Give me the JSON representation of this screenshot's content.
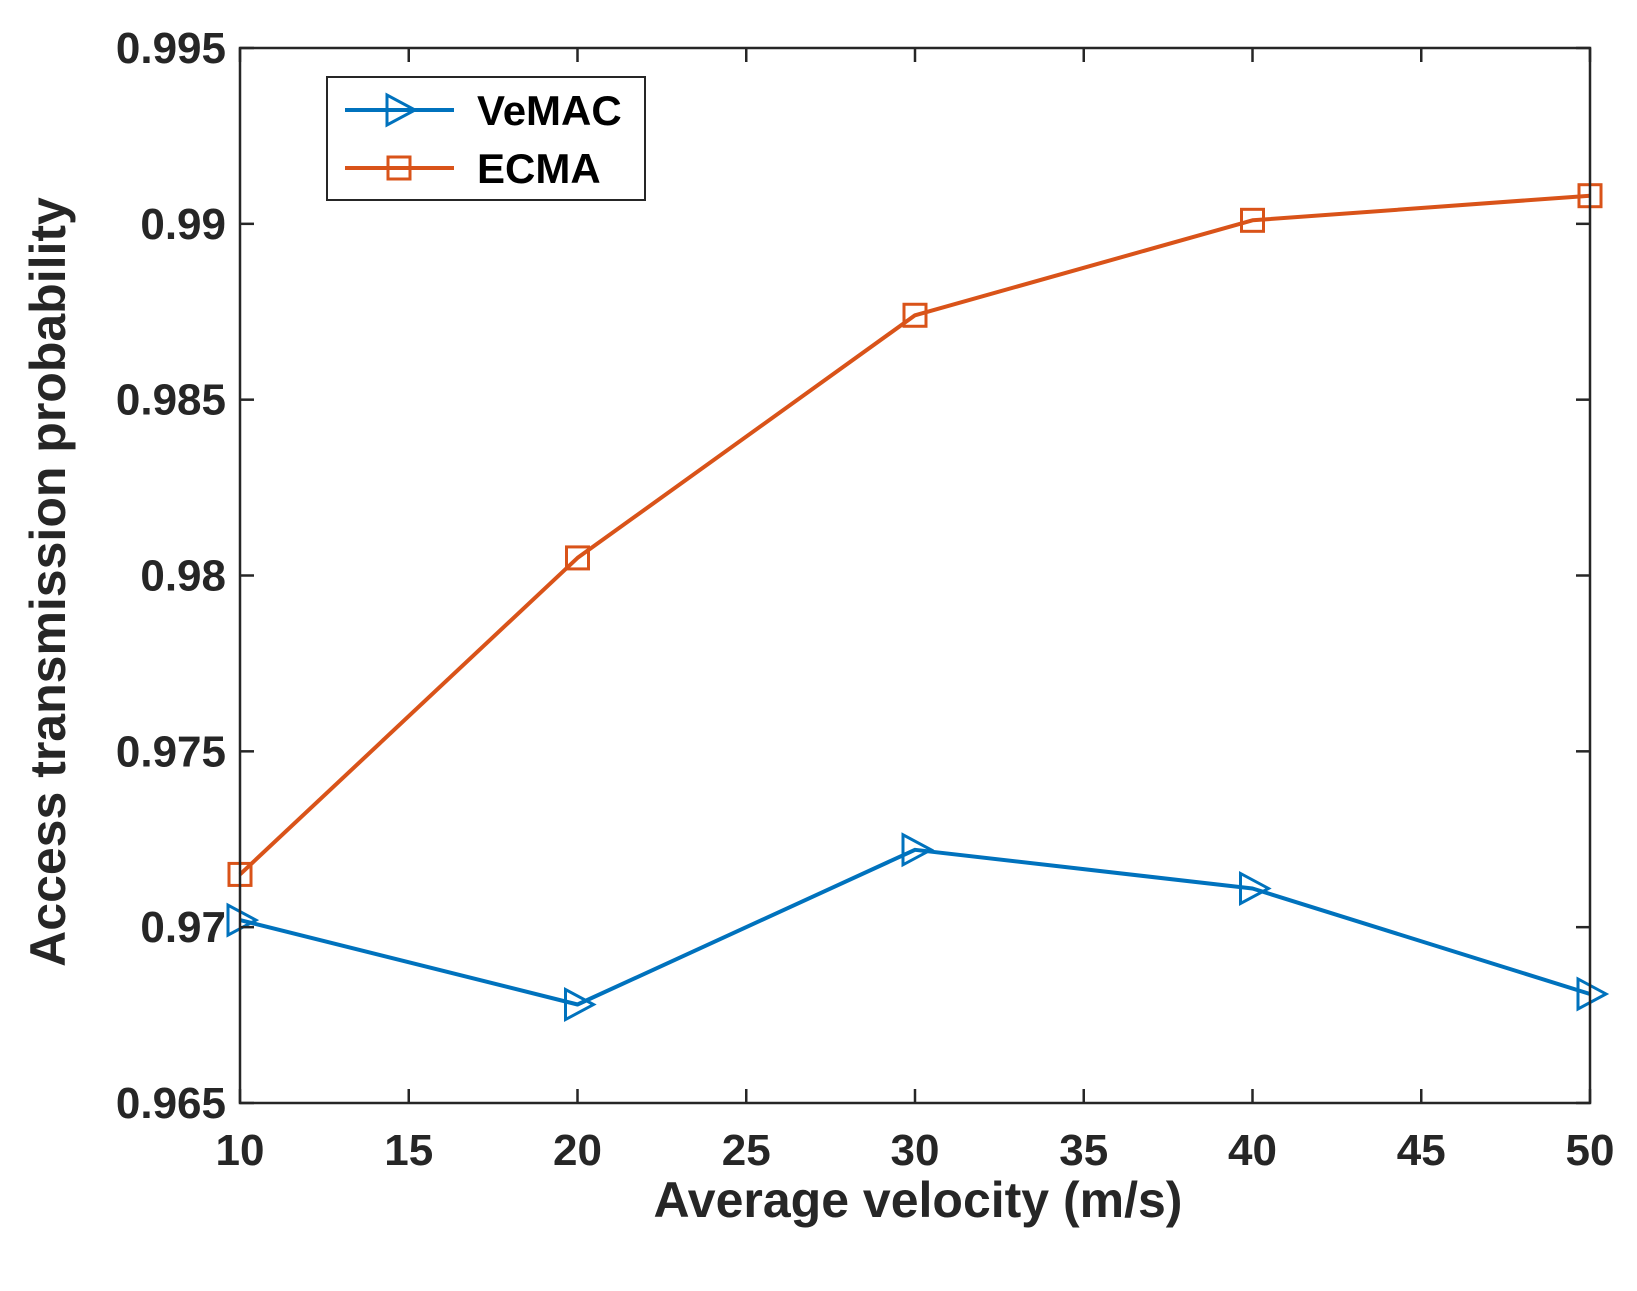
{
  "chart_data": {
    "type": "line",
    "title": "",
    "xlabel": "Average velocity (m/s)",
    "ylabel": "Access transmission probability",
    "xlim": [
      10,
      50
    ],
    "ylim": [
      0.965,
      0.995
    ],
    "xticks": [
      10,
      15,
      20,
      25,
      30,
      35,
      40,
      45,
      50
    ],
    "xtick_labels": [
      "10",
      "15",
      "20",
      "25",
      "30",
      "35",
      "40",
      "45",
      "50"
    ],
    "yticks": [
      0.965,
      0.97,
      0.975,
      0.98,
      0.985,
      0.99,
      0.995
    ],
    "ytick_labels": [
      "0.965",
      "0.97",
      "0.975",
      "0.98",
      "0.985",
      "0.99",
      "0.995"
    ],
    "grid": false,
    "legend_position": "top-left",
    "series": [
      {
        "name": "VeMAC",
        "color": "#0072BD",
        "marker": "triangle-right",
        "x": [
          10,
          20,
          30,
          40,
          50
        ],
        "values": [
          0.9702,
          0.9678,
          0.9722,
          0.9711,
          0.9681
        ]
      },
      {
        "name": "ECMA",
        "color": "#D95319",
        "marker": "square",
        "x": [
          10,
          20,
          30,
          40,
          50
        ],
        "values": [
          0.9715,
          0.9805,
          0.9874,
          0.9901,
          0.9908
        ]
      }
    ]
  }
}
